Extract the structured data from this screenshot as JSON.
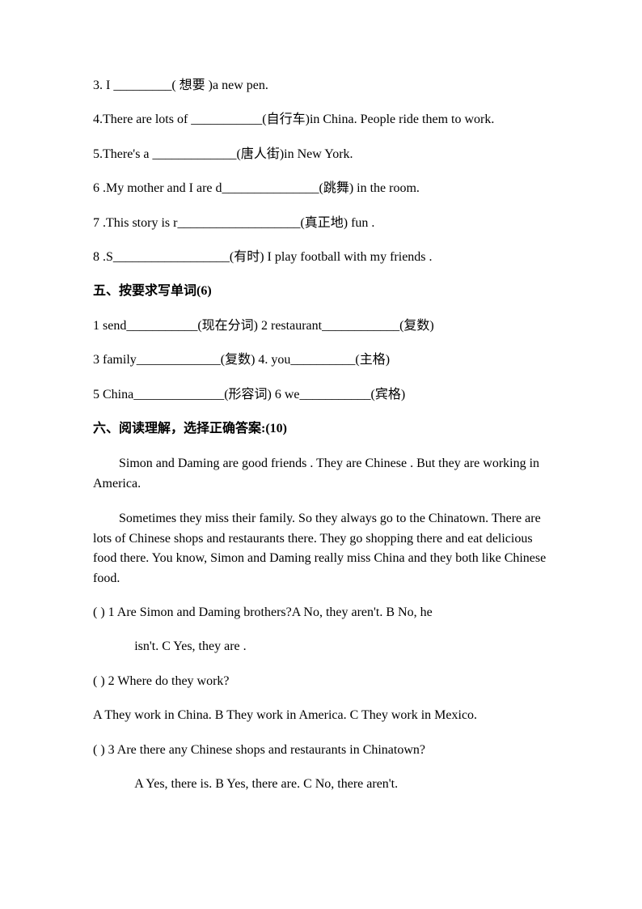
{
  "colors": {
    "text": "#000000",
    "background": "#ffffff"
  },
  "typography": {
    "font_family": "Times New Roman / SimSun",
    "font_size_pt": 12,
    "line_height": 1.4
  },
  "q3": "3. I _________(  想要  )a new pen.",
  "q4": "4.There are lots of ___________(自行车)in China. People ride them to work.",
  "q5": "5.There's a _____________(唐人街)in New York.",
  "q6": "6 .My mother and I are d_______________(跳舞) in the room.",
  "q7": "7 .This story is r___________________(真正地) fun .",
  "q8": "8 .S__________________(有时) I play football with my friends .",
  "section5_title": "五、按要求写单词(6)",
  "s5_1": "1 send___________(现在分词)      2 restaurant____________(复数)",
  "s5_2": "3 family_____________(复数)             4. you__________(主格)",
  "s5_3": "5 China______________(形容词)      6 we___________(宾格)",
  "section6_title": "六、阅读理解，选择正确答案:(10)",
  "passage1": "Simon and Daming are good friends . They are Chinese . But they are working in America.",
  "passage2": "Sometimes they miss their family. So they always go to the Chinatown. There are lots of Chinese shops and restaurants there. They go shopping there and eat delicious food there. You know, Simon and Daming really miss China and they both like Chinese food.",
  "rq1a": "(      ) 1 Are Simon and Daming brothers?A No, they aren't.        B No, he",
  "rq1b": "isn't.        C Yes, they are .",
  "rq2": "(      ) 2 Where do they work?",
  "rq2_ans": "A They work in China. B They work in America. C They work in Mexico.",
  "rq3": "(      ) 3 Are there any Chinese shops and restaurants in Chinatown?",
  "rq3_ans": "A Yes, there is.        B Yes, there are.        C No, there aren't."
}
